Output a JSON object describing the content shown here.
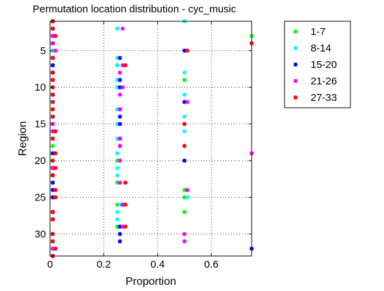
{
  "chart_data": {
    "type": "scatter",
    "title": "Permutation location distribution - cyc_music",
    "xlabel": "Proportion",
    "ylabel": "Region",
    "xlim": [
      0,
      0.75
    ],
    "ylim": [
      33,
      1
    ],
    "y_reversed": true,
    "grid": true,
    "legend_position": "outside-top-right",
    "x_ticks": [
      0,
      0.2,
      0.4,
      0.6
    ],
    "x_tick_labels": [
      "0",
      "0.2",
      "0.4",
      "0.6"
    ],
    "y_ticks": [
      5,
      10,
      15,
      20,
      25,
      30
    ],
    "y_tick_labels": [
      "5",
      "10",
      "15",
      "20",
      "25",
      "30"
    ],
    "regions": [
      1,
      2,
      3,
      4,
      5,
      6,
      7,
      8,
      9,
      10,
      11,
      12,
      13,
      14,
      15,
      16,
      17,
      18,
      19,
      20,
      21,
      22,
      23,
      24,
      25,
      26,
      27,
      28,
      29,
      30,
      31,
      32,
      33
    ],
    "series": [
      {
        "name": "1-7",
        "color": "#00ff00",
        "x": [
          0.01,
          0.25,
          0.75,
          0.01,
          0.01,
          0.01,
          0.25,
          0.01,
          0.5,
          0.01,
          0.01,
          0.01,
          0.01,
          0.01,
          0.01,
          0.01,
          0.01,
          0.01,
          0.01,
          0.25,
          0.01,
          0.01,
          0.25,
          0.5,
          0.5,
          0.25,
          0.5,
          0.01,
          0.25,
          0.01,
          0.01,
          0.01,
          0.01
        ]
      },
      {
        "name": "8-14",
        "color": "#00ffff",
        "x": [
          0.5,
          0.25,
          0.01,
          0.01,
          0.01,
          0.25,
          0.25,
          0.5,
          0.25,
          0.25,
          0.5,
          0.01,
          0.25,
          0.5,
          0.25,
          0.5,
          0.25,
          0.5,
          0.25,
          0.26,
          0.25,
          0.25,
          0.26,
          0.51,
          0.51,
          0.26,
          0.25,
          0.25,
          0.26,
          0.01,
          0.01,
          0.01,
          0.01
        ]
      },
      {
        "name": "15-20",
        "color": "#0000ff",
        "x": [
          0.01,
          0.01,
          0.01,
          0.01,
          0.5,
          0.26,
          0.01,
          0.01,
          0.26,
          0.26,
          0.01,
          0.5,
          0.26,
          0.26,
          0.26,
          0.01,
          0.26,
          0.26,
          0.01,
          0.5,
          0.01,
          0.01,
          0.01,
          0.01,
          0.01,
          0.27,
          0.01,
          0.01,
          0.26,
          0.26,
          0.26,
          0.75,
          0.01
        ]
      },
      {
        "name": "21-26",
        "color": "#ff00ff",
        "x": [
          0.01,
          0.27,
          0.01,
          0.01,
          0.02,
          0.01,
          0.27,
          0.26,
          0.01,
          0.27,
          0.26,
          0.51,
          0.26,
          0.01,
          0.01,
          0.01,
          0.26,
          0.26,
          0.75,
          0.26,
          0.01,
          0.01,
          0.26,
          0.51,
          0.02,
          0.27,
          0.01,
          0.01,
          0.27,
          0.5,
          0.5,
          0.01,
          0.01
        ]
      },
      {
        "name": "27-33",
        "color": "#ff0000",
        "x": [
          0.01,
          0.01,
          0.02,
          0.75,
          0.51,
          0.01,
          0.28,
          0.01,
          0.01,
          0.01,
          0.01,
          0.01,
          0.01,
          0.01,
          0.5,
          0.02,
          0.01,
          0.5,
          0.02,
          0.01,
          0.02,
          0.01,
          0.28,
          0.02,
          0.02,
          0.28,
          0.01,
          0.01,
          0.28,
          0.01,
          0.01,
          0.02,
          0.01
        ]
      }
    ]
  }
}
